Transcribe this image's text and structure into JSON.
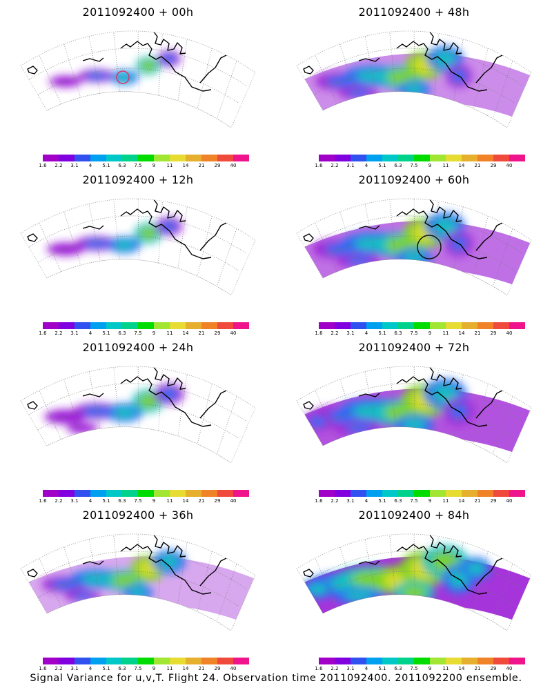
{
  "panels": [
    {
      "title": "2011092400 + 00h",
      "lead": 0,
      "marker_color": "#e0306a"
    },
    {
      "title": "2011092400 + 48h",
      "lead": 48,
      "marker_color": null
    },
    {
      "title": "2011092400 + 12h",
      "lead": 12,
      "marker_color": null
    },
    {
      "title": "2011092400 + 60h",
      "lead": 60,
      "marker_color": "#111111"
    },
    {
      "title": "2011092400 + 24h",
      "lead": 24,
      "marker_color": null
    },
    {
      "title": "2011092400 + 72h",
      "lead": 72,
      "marker_color": null
    },
    {
      "title": "2011092400 + 36h",
      "lead": 36,
      "marker_color": null
    },
    {
      "title": "2011092400 + 84h",
      "lead": 84,
      "marker_color": null
    }
  ],
  "colorbar": {
    "levels": [
      "1.6",
      "2.2",
      "3.1",
      "4",
      "5.1",
      "6.3",
      "7.5",
      "9",
      "11",
      "14",
      "21",
      "29",
      "40"
    ],
    "colors": [
      "#a000c8",
      "#8000e0",
      "#3050f0",
      "#00a0f0",
      "#00c8c8",
      "#00d28c",
      "#00dc00",
      "#a0e632",
      "#e6dc32",
      "#e6af2d",
      "#f08228",
      "#f04a3c",
      "#f0148c"
    ]
  },
  "caption": "Signal Variance for u,v,T. Flight 24. Observation time 2011092400. 2011092200 ensemble."
}
